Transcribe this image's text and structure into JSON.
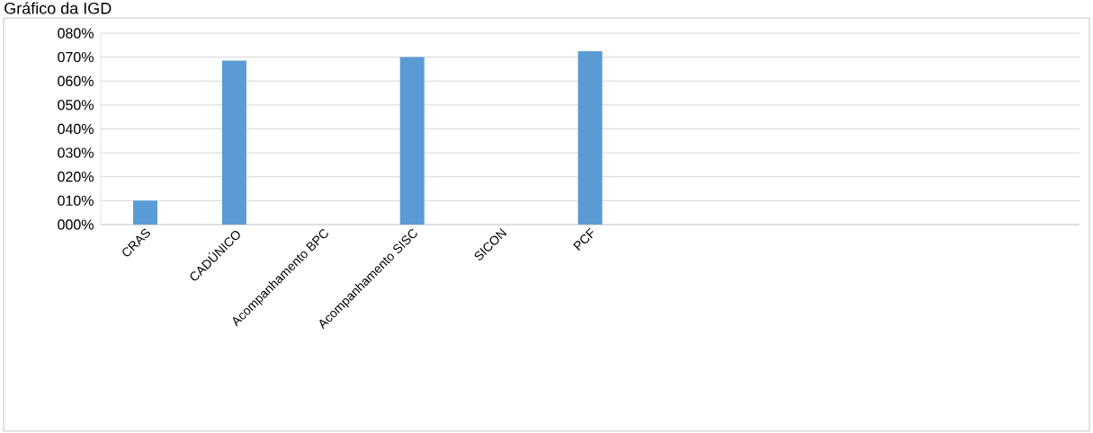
{
  "chart_data": {
    "type": "bar",
    "title": "Gráfico da IGD",
    "categories": [
      "CRAS",
      "CADÚNICO",
      "Acompanhamento BPC",
      "Acompanhamento SISC",
      "SICON",
      "PCF",
      null,
      null,
      null,
      null,
      null
    ],
    "values": [
      10,
      68.5,
      0,
      70,
      0,
      72.5,
      null,
      null,
      null,
      null,
      null
    ],
    "color": "#5b9bd5",
    "ylim": [
      0,
      80
    ],
    "yticks": [
      {
        "value": 0,
        "label": "000%"
      },
      {
        "value": 10,
        "label": "010%"
      },
      {
        "value": 20,
        "label": "020%"
      },
      {
        "value": 30,
        "label": "030%"
      },
      {
        "value": 40,
        "label": "040%"
      },
      {
        "value": 50,
        "label": "050%"
      },
      {
        "value": 60,
        "label": "060%"
      },
      {
        "value": 70,
        "label": "070%"
      },
      {
        "value": 80,
        "label": "080%"
      }
    ],
    "grid": "y"
  }
}
